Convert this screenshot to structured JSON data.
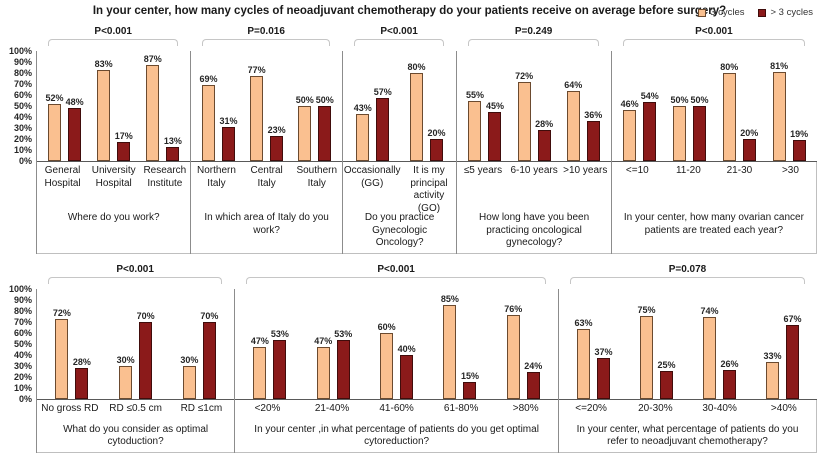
{
  "chart_data": {
    "type": "bar",
    "title": "In your center, how many cycles of neoadjuvant chemotherapy do your patients receive on average before surgery?",
    "ylabel": "",
    "xlabel": "",
    "ylim": [
      0,
      100
    ],
    "yticks": [
      "100%",
      "90%",
      "80%",
      "70%",
      "60%",
      "50%",
      "40%",
      "30%",
      "20%",
      "10%",
      "0%"
    ],
    "grid": false,
    "legend_position": "top-right",
    "legend": [
      {
        "label": "3 cycles",
        "color": "#FAC090",
        "border": "#6B4A2F"
      },
      {
        "label": "> 3 cycles",
        "color": "#8B1A1A",
        "border": "#400C0B"
      }
    ],
    "colors": {
      "series1_fill": "#FAC090",
      "series1_border": "#6B4A2F",
      "series2_fill": "#8B1A1A",
      "series2_border": "#400C0B",
      "axis_line": "#595959",
      "panel_separator": "#8C8C8C",
      "bracket": "#C6C6C6"
    },
    "rows": [
      {
        "panels": [
          {
            "p_value": "P<0.001",
            "question": "Where do you work?",
            "weight": 155,
            "categories": [
              "General Hospital",
              "University Hospital",
              "Research Institute"
            ],
            "series": [
              {
                "name": "3 cycles",
                "values": [
                  52,
                  83,
                  87
                ]
              },
              {
                "name": "> 3 cycles",
                "values": [
                  48,
                  17,
                  13
                ]
              }
            ]
          },
          {
            "p_value": "P=0.016",
            "question": "In which area of Italy do you work?",
            "weight": 152,
            "categories": [
              "Northern Italy",
              "Central Italy",
              "Southern Italy"
            ],
            "series": [
              {
                "name": "3 cycles",
                "values": [
                  69,
                  77,
                  50
                ]
              },
              {
                "name": "> 3 cycles",
                "values": [
                  31,
                  23,
                  50
                ]
              }
            ]
          },
          {
            "p_value": "P<0.001",
            "question": "Do you practice Gynecologic Oncology?",
            "weight": 115,
            "categories": [
              "Occasionally (GG)",
              "It is my principal activity (GO)"
            ],
            "series": [
              {
                "name": "3 cycles",
                "values": [
                  43,
                  80
                ]
              },
              {
                "name": "> 3 cycles",
                "values": [
                  57,
                  20
                ]
              }
            ]
          },
          {
            "p_value": "P=0.249",
            "question": "How long have you been practicing oncological gynecology?",
            "weight": 155,
            "categories": [
              "≤5 years",
              "6-10 years",
              ">10 years"
            ],
            "series": [
              {
                "name": "3 cycles",
                "values": [
                  55,
                  72,
                  64
                ]
              },
              {
                "name": "> 3 cycles",
                "values": [
                  45,
                  28,
                  36
                ]
              }
            ]
          },
          {
            "p_value": "P<0.001",
            "question": "In your center, how many ovarian cancer patients are treated each year?",
            "weight": 207,
            "categories": [
              "<=10",
              "11-20",
              "21-30",
              ">30"
            ],
            "series": [
              {
                "name": "3 cycles",
                "values": [
                  46,
                  50,
                  80,
                  81
                ]
              },
              {
                "name": "> 3 cycles",
                "values": [
                  54,
                  50,
                  20,
                  19
                ]
              }
            ]
          }
        ]
      },
      {
        "panels": [
          {
            "p_value": "P<0.001",
            "question": "What do you consider as optimal cytoduction?",
            "weight": 199,
            "categories": [
              "No gross RD",
              "RD ≤0.5 cm",
              "RD ≤1cm"
            ],
            "series": [
              {
                "name": "3 cycles",
                "values": [
                  72,
                  30,
                  30
                ]
              },
              {
                "name": "> 3 cycles",
                "values": [
                  28,
                  70,
                  70
                ]
              }
            ]
          },
          {
            "p_value": "P<0.001",
            "question": "In your center ,in what percentage of patients do you get optimal cytoreduction?",
            "weight": 325,
            "categories": [
              "<20%",
              "21-40%",
              "41-60%",
              "61-80%",
              ">80%"
            ],
            "series": [
              {
                "name": "3 cycles",
                "values": [
                  47,
                  47,
                  60,
                  85,
                  76
                ]
              },
              {
                "name": "> 3 cycles",
                "values": [
                  53,
                  53,
                  40,
                  15,
                  24
                ]
              }
            ]
          },
          {
            "p_value": "P=0.078",
            "question": "In your center, what percentage of patients do you refer to neoadjuvant chemotherapy?",
            "weight": 260,
            "categories": [
              "<=20%",
              "20-30%",
              "30-40%",
              ">40%"
            ],
            "series": [
              {
                "name": "3 cycles",
                "values": [
                  63,
                  75,
                  74,
                  33
                ]
              },
              {
                "name": "> 3 cycles",
                "values": [
                  37,
                  25,
                  26,
                  67
                ]
              }
            ]
          }
        ]
      }
    ]
  }
}
